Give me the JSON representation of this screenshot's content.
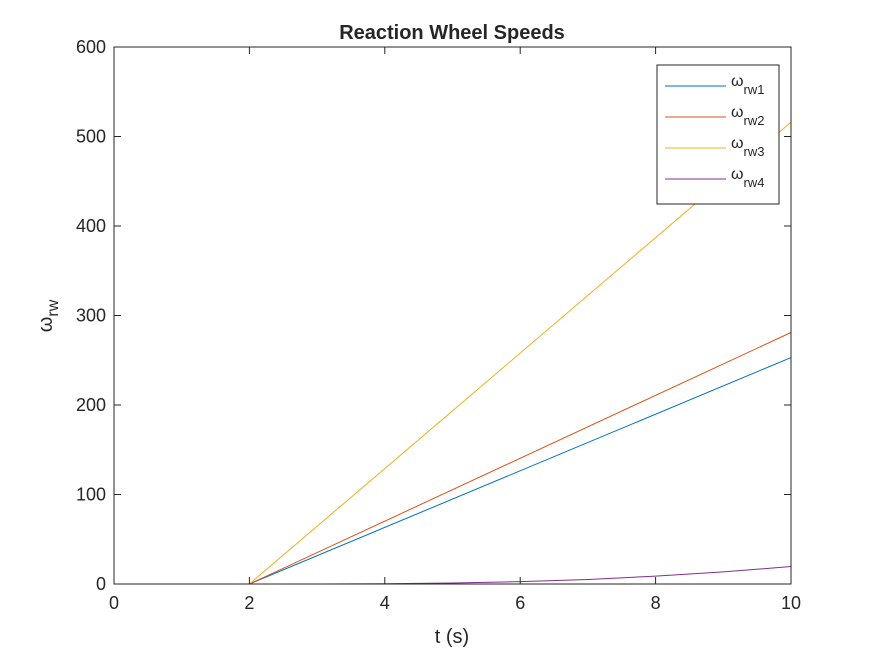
{
  "chart_data": {
    "type": "line",
    "title": "Reaction Wheel Speeds",
    "xlabel": "t (s)",
    "ylabel": {
      "symbol": "ω",
      "subscript": "rw"
    },
    "xlim": [
      0,
      10
    ],
    "ylim": [
      0,
      600
    ],
    "xticks": [
      0,
      2,
      4,
      6,
      8,
      10
    ],
    "yticks": [
      0,
      100,
      200,
      300,
      400,
      500,
      600
    ],
    "grid": false,
    "legend_position": "top-right",
    "series": [
      {
        "name": {
          "symbol": "ω",
          "subscript": "rw1"
        },
        "color": "#0072BD",
        "x": [
          0,
          2,
          10
        ],
        "y": [
          0,
          0,
          253
        ]
      },
      {
        "name": {
          "symbol": "ω",
          "subscript": "rw2"
        },
        "color": "#D95319",
        "x": [
          0,
          2,
          10
        ],
        "y": [
          0,
          0,
          281
        ]
      },
      {
        "name": {
          "symbol": "ω",
          "subscript": "rw3"
        },
        "color": "#EDB120",
        "x": [
          0,
          2,
          10
        ],
        "y": [
          0,
          0,
          516
        ]
      },
      {
        "name": {
          "symbol": "ω",
          "subscript": "rw4"
        },
        "color": "#7E2F8E",
        "x": [
          0,
          2,
          3,
          4,
          5,
          6,
          7,
          8,
          9,
          10
        ],
        "y": [
          0,
          0,
          0,
          0.3,
          1.1,
          2.6,
          5.1,
          8.8,
          13.5,
          19.5
        ]
      }
    ]
  }
}
